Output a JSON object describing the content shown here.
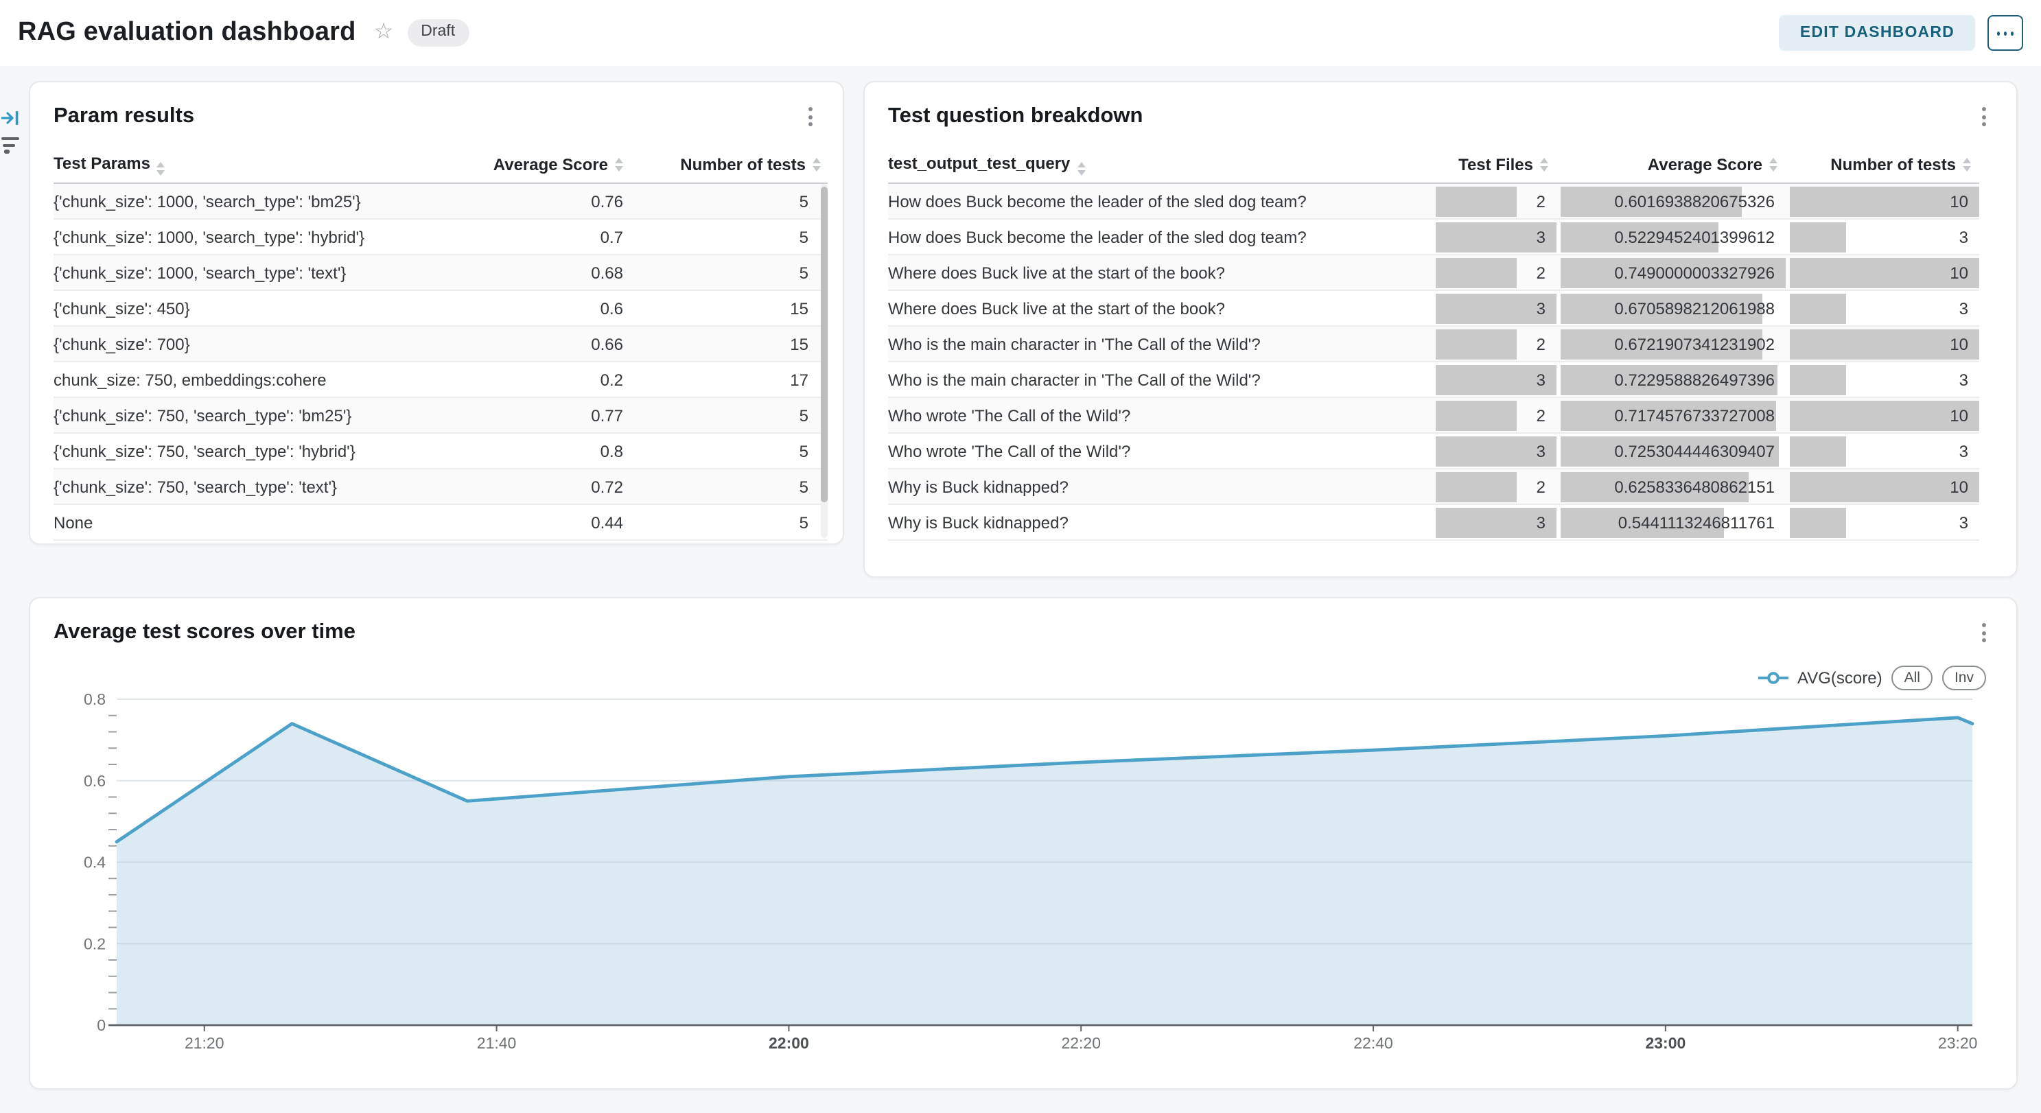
{
  "header": {
    "title": "RAG evaluation dashboard",
    "badge": "Draft",
    "edit_button": "EDIT DASHBOARD",
    "star_icon": "star-outline",
    "more_icon": "horizontal-ellipsis"
  },
  "side_controls": {
    "expand_icon": "arrow-right-to-bar",
    "filter_icon": "filter-lines"
  },
  "param_results": {
    "title": "Param results",
    "columns": [
      "Test Params",
      "Average Score",
      "Number of tests"
    ],
    "rows": [
      {
        "params": "{'chunk_size': 1000, 'search_type': 'bm25'}",
        "score": "0.76",
        "tests": "5"
      },
      {
        "params": "{'chunk_size': 1000, 'search_type': 'hybrid'}",
        "score": "0.7",
        "tests": "5"
      },
      {
        "params": "{'chunk_size': 1000, 'search_type': 'text'}",
        "score": "0.68",
        "tests": "5"
      },
      {
        "params": "{'chunk_size': 450}",
        "score": "0.6",
        "tests": "15"
      },
      {
        "params": "{'chunk_size': 700}",
        "score": "0.66",
        "tests": "15"
      },
      {
        "params": "chunk_size: 750, embeddings:cohere",
        "score": "0.2",
        "tests": "17"
      },
      {
        "params": "{'chunk_size': 750, 'search_type': 'bm25'}",
        "score": "0.77",
        "tests": "5"
      },
      {
        "params": "{'chunk_size': 750, 'search_type': 'hybrid'}",
        "score": "0.8",
        "tests": "5"
      },
      {
        "params": "{'chunk_size': 750, 'search_type': 'text'}",
        "score": "0.72",
        "tests": "5"
      },
      {
        "params": "None",
        "score": "0.44",
        "tests": "5"
      }
    ]
  },
  "test_breakdown": {
    "title": "Test question breakdown",
    "columns": [
      "test_output_test_query",
      "Test Files",
      "Average Score",
      "Number of tests"
    ],
    "bar_max": {
      "files": 3,
      "score": 0.7490000003327926,
      "tests": 10
    },
    "bar_color": "#c9c9c9",
    "rows": [
      {
        "query": "How does Buck become the leader of the sled dog team?",
        "files": "2",
        "score": "0.6016938820675326",
        "tests": "10"
      },
      {
        "query": "How does Buck become the leader of the sled dog team?",
        "files": "3",
        "score": "0.5229452401399612",
        "tests": "3"
      },
      {
        "query": "Where does Buck live at the start of the book?",
        "files": "2",
        "score": "0.7490000003327926",
        "tests": "10"
      },
      {
        "query": "Where does Buck live at the start of the book?",
        "files": "3",
        "score": "0.6705898212061988",
        "tests": "3"
      },
      {
        "query": "Who is the main character in 'The Call of the Wild'?",
        "files": "2",
        "score": "0.6721907341231902",
        "tests": "10"
      },
      {
        "query": "Who is the main character in 'The Call of the Wild'?",
        "files": "3",
        "score": "0.7229588826497396",
        "tests": "3"
      },
      {
        "query": "Who wrote 'The Call of the Wild'?",
        "files": "2",
        "score": "0.7174576733727008",
        "tests": "10"
      },
      {
        "query": "Who wrote 'The Call of the Wild'?",
        "files": "3",
        "score": "0.7253044446309407",
        "tests": "3"
      },
      {
        "query": "Why is Buck kidnapped?",
        "files": "2",
        "score": "0.6258336480862151",
        "tests": "10"
      },
      {
        "query": "Why is Buck kidnapped?",
        "files": "3",
        "score": "0.5441113246811761",
        "tests": "3"
      }
    ]
  },
  "chart_data": {
    "type": "area",
    "title": "Average test scores over time",
    "legend": {
      "series_label": "AVG(score)",
      "buttons": [
        "All",
        "Inv"
      ],
      "position": "top-right"
    },
    "series": [
      {
        "name": "AVG(score)",
        "points": [
          [
            "21:14",
            0.45
          ],
          [
            "21:26",
            0.74
          ],
          [
            "21:38",
            0.55
          ],
          [
            "22:00",
            0.61
          ],
          [
            "22:20",
            0.645
          ],
          [
            "22:40",
            0.675
          ],
          [
            "23:00",
            0.71
          ],
          [
            "23:20",
            0.755
          ],
          [
            "23:21",
            0.74
          ]
        ]
      }
    ],
    "x_domain": [
      "21:14",
      "23:21"
    ],
    "x_ticks": [
      {
        "label": "21:20",
        "bold": false
      },
      {
        "label": "21:40",
        "bold": false
      },
      {
        "label": "22:00",
        "bold": true
      },
      {
        "label": "22:20",
        "bold": false
      },
      {
        "label": "22:40",
        "bold": false
      },
      {
        "label": "23:00",
        "bold": true
      },
      {
        "label": "23:20",
        "bold": false
      }
    ],
    "ylim": [
      0,
      0.8
    ],
    "y_ticks": [
      {
        "label": "0",
        "value": 0
      },
      {
        "label": "0.2",
        "value": 0.2
      },
      {
        "label": "0.4",
        "value": 0.4
      },
      {
        "label": "0.6",
        "value": 0.6
      },
      {
        "label": "0.8",
        "value": 0.8
      }
    ],
    "y_minor_step": 0.04,
    "grid": true,
    "line_color": "#4ba1c7",
    "fill_color": "#dcebf3"
  },
  "colors": {
    "page_bg": "#f6f7f9",
    "card_bg": "#ffffff",
    "accent_teal": "#19607a",
    "edit_button_bg": "#e4eff5",
    "table_bar": "#c9c9c9",
    "row_stripe": "#fafafa",
    "chart_line": "#4ba1c7",
    "chart_fill": "#dcebf3"
  }
}
